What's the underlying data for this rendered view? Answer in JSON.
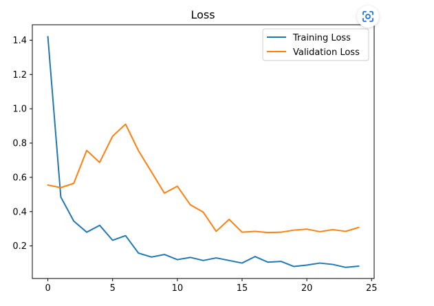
{
  "chart_data": {
    "type": "line",
    "title": "Loss",
    "xlabel": "",
    "ylabel": "",
    "xlim": [
      -1.2,
      25.2
    ],
    "ylim": [
      0.01,
      1.49
    ],
    "xticks": [
      0,
      5,
      10,
      15,
      20,
      25
    ],
    "yticks": [
      0.2,
      0.4,
      0.6,
      0.8,
      1.0,
      1.2,
      1.4
    ],
    "ytick_labels": [
      "0.2",
      "0.4",
      "0.6",
      "0.8",
      "1.0",
      "1.2",
      "1.4"
    ],
    "xtick_labels": [
      "0",
      "5",
      "10",
      "15",
      "20",
      "25"
    ],
    "legend_position": "top-right",
    "grid": false,
    "x": [
      0,
      1,
      2,
      3,
      4,
      5,
      6,
      7,
      8,
      9,
      10,
      11,
      12,
      13,
      14,
      15,
      16,
      17,
      18,
      19,
      20,
      21,
      22,
      23,
      24
    ],
    "series": [
      {
        "name": "Training Loss",
        "color": "#1f77b4",
        "values": [
          1.42,
          0.485,
          0.345,
          0.28,
          0.32,
          0.233,
          0.26,
          0.158,
          0.135,
          0.15,
          0.12,
          0.133,
          0.115,
          0.13,
          0.115,
          0.1,
          0.138,
          0.105,
          0.11,
          0.08,
          0.088,
          0.1,
          0.092,
          0.075,
          0.082
        ]
      },
      {
        "name": "Validation Loss",
        "color": "#ff7f0e",
        "values": [
          0.555,
          0.54,
          0.565,
          0.757,
          0.687,
          0.84,
          0.91,
          0.755,
          0.632,
          0.508,
          0.548,
          0.44,
          0.397,
          0.285,
          0.355,
          0.28,
          0.285,
          0.278,
          0.28,
          0.292,
          0.298,
          0.283,
          0.295,
          0.285,
          0.308
        ]
      }
    ]
  },
  "toolbar": {
    "lens_icon": "google-lens-icon"
  }
}
